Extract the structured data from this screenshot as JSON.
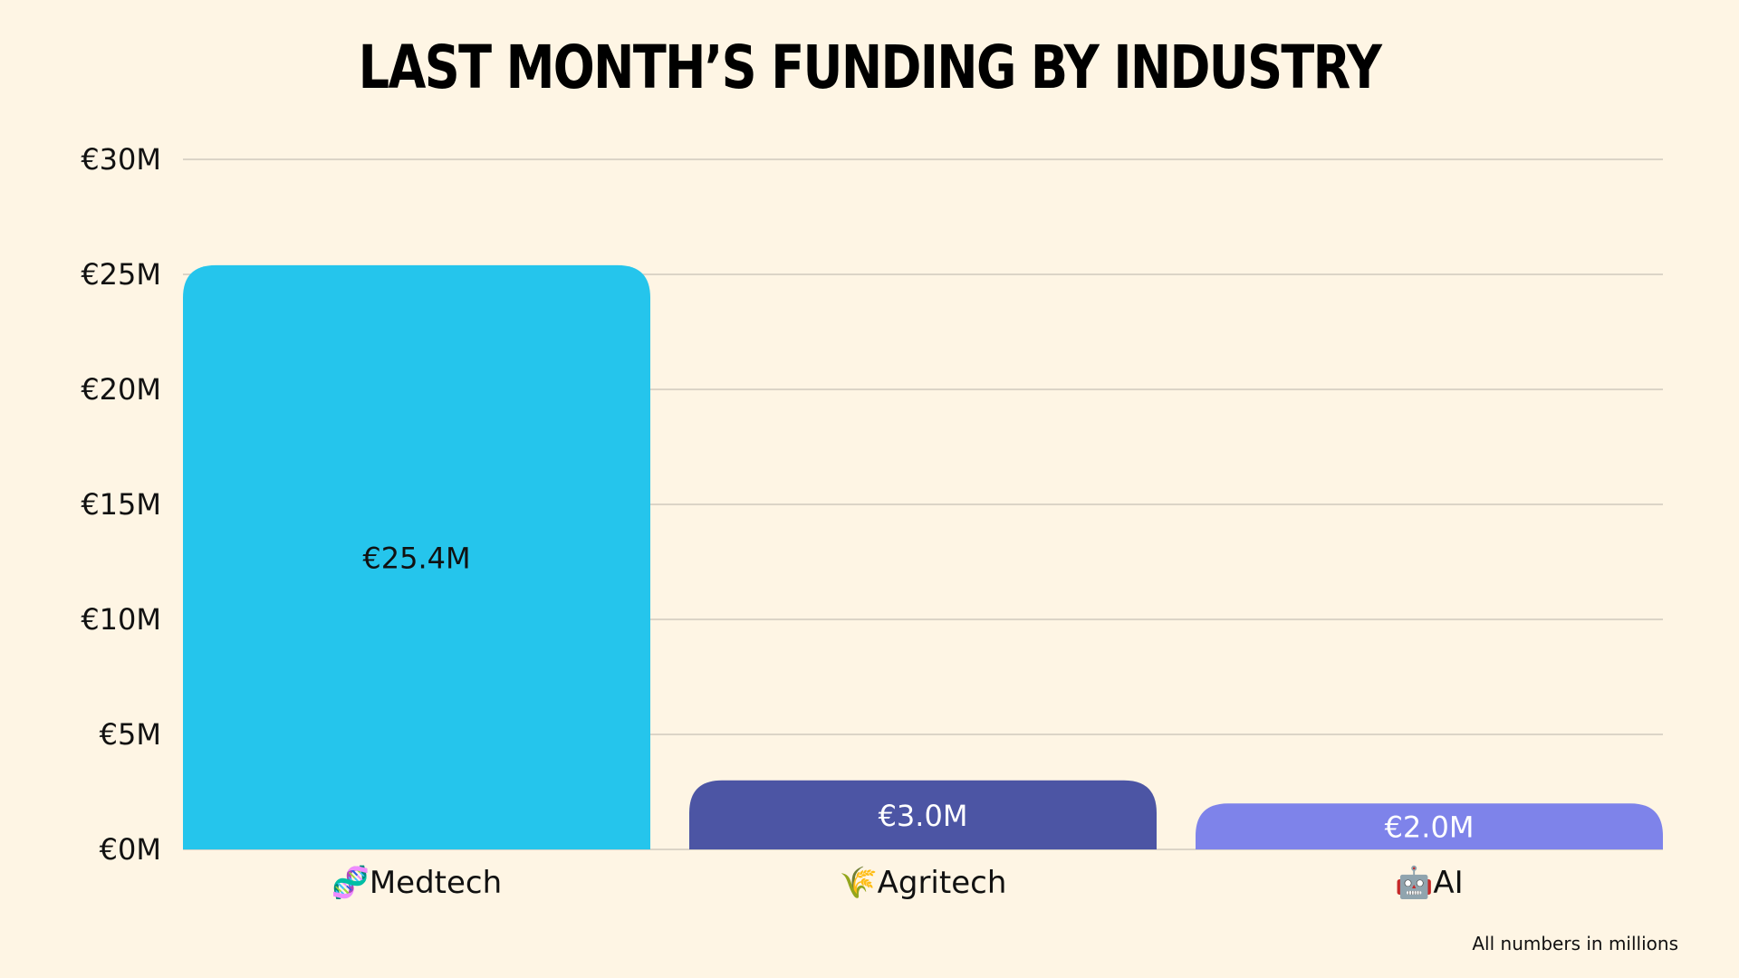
{
  "chart_data": {
    "type": "bar",
    "title": "Last Month’s Funding by Industry",
    "categories": [
      "Medtech",
      "Agritech",
      "AI"
    ],
    "category_icons": [
      "dna-icon",
      "ear-of-rice-icon",
      "robot-icon"
    ],
    "category_glyphs": [
      "🧬",
      "🌾",
      "🤖"
    ],
    "values": [
      25.4,
      3.0,
      2.0
    ],
    "value_labels": [
      "€25.4M",
      "€3.0M",
      "€2.0M"
    ],
    "bar_colors": [
      "#25c5ec",
      "#4c55a4",
      "#7e83ea"
    ],
    "value_label_colors": [
      "#111111",
      "#ffffff",
      "#ffffff"
    ],
    "ylim": [
      0,
      30
    ],
    "yticks": [
      0,
      5,
      10,
      15,
      20,
      25,
      30
    ],
    "ytick_labels": [
      "€0M",
      "€5M",
      "€10M",
      "€15M",
      "€20M",
      "€25M",
      "€30M"
    ],
    "grid": true,
    "xlabel": "",
    "ylabel": ""
  },
  "footnote": "All numbers in millions"
}
